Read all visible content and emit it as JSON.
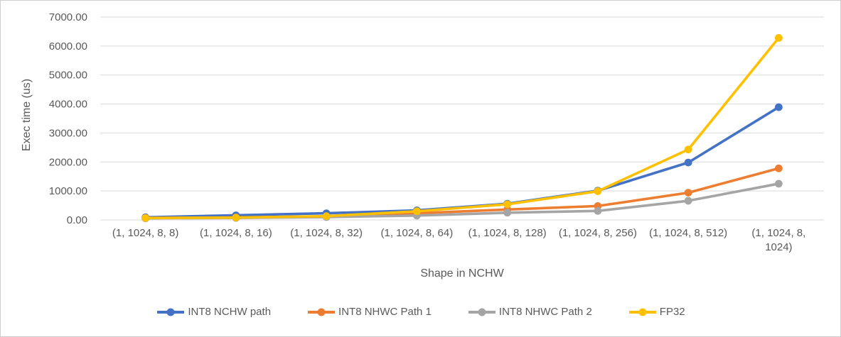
{
  "chart_data": {
    "type": "line",
    "title": "",
    "xlabel": "Shape in NCHW",
    "ylabel": "Exec time (us)",
    "categories": [
      "(1, 1024, 8, 8)",
      "(1, 1024, 8, 16)",
      "(1, 1024, 8, 32)",
      "(1, 1024, 8, 64)",
      "(1, 1024, 8, 128)",
      "(1, 1024, 8, 256)",
      "(1, 1024, 8, 512)",
      "(1, 1024, 8,\n1024)"
    ],
    "series": [
      {
        "name": "INT8 NCHW path",
        "color": "#4472C4",
        "values": [
          90,
          160,
          230,
          330,
          560,
          1010,
          1980,
          3890
        ]
      },
      {
        "name": "INT8 NHWC Path 1",
        "color": "#ED7D31",
        "values": [
          70,
          85,
          120,
          230,
          360,
          480,
          940,
          1780
        ]
      },
      {
        "name": "INT8 NHWC Path 2",
        "color": "#A5A5A5",
        "values": [
          55,
          70,
          100,
          150,
          250,
          310,
          660,
          1250
        ]
      },
      {
        "name": "FP32",
        "color": "#FFC000",
        "values": [
          65,
          80,
          130,
          300,
          540,
          990,
          2430,
          6280
        ]
      }
    ],
    "ylim": [
      0,
      7000
    ],
    "ytick_step": 1000,
    "ytick_decimals": 2,
    "grid": true,
    "gridline_color": "#D9D9D9",
    "text_color": "#595959",
    "legend_position": "bottom"
  }
}
